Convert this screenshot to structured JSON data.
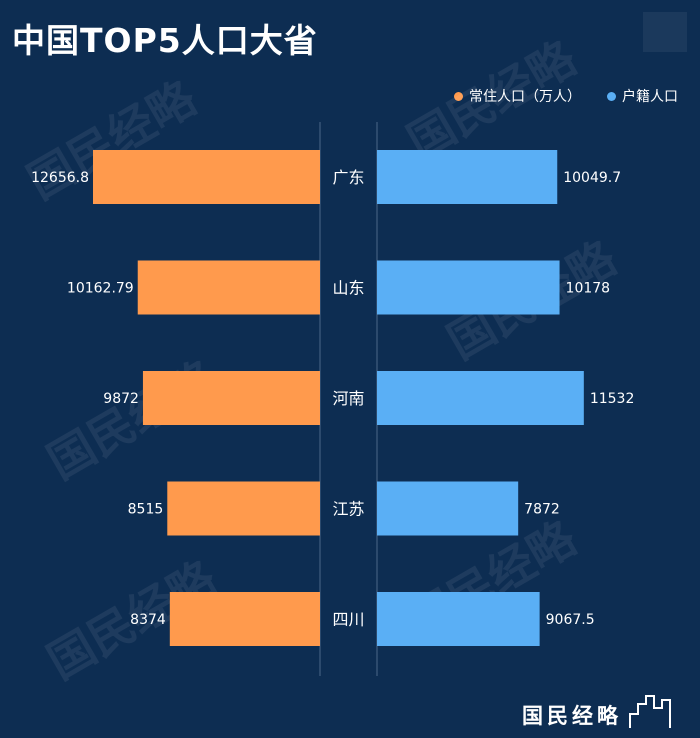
{
  "title": "中国TOP5人口大省",
  "brand": "国民经略",
  "watermark": "国民经略",
  "colors": {
    "background": "#0d2d52",
    "left_series": "#ff9a4d",
    "right_series": "#5aaff5",
    "axis": "#4a6888"
  },
  "chart_data": {
    "type": "bar",
    "orientation": "horizontal-butterfly",
    "categories": [
      "广东",
      "山东",
      "河南",
      "江苏",
      "四川"
    ],
    "series": [
      {
        "name": "常住人口（万人）",
        "side": "left",
        "values": [
          12656.8,
          10162.79,
          9872,
          8515,
          8374
        ]
      },
      {
        "name": "户籍人口",
        "side": "right",
        "values": [
          10049.7,
          10178,
          11532,
          7872,
          9067.5
        ]
      }
    ],
    "value_labels": {
      "left": [
        "12656.8",
        "10162.79",
        "9872",
        "8515",
        "8374"
      ],
      "right": [
        "10049.7",
        "10178",
        "11532",
        "7872",
        "9067.5"
      ]
    },
    "xlim": [
      0,
      14000
    ],
    "legend_position": "top-right",
    "grid": false
  }
}
